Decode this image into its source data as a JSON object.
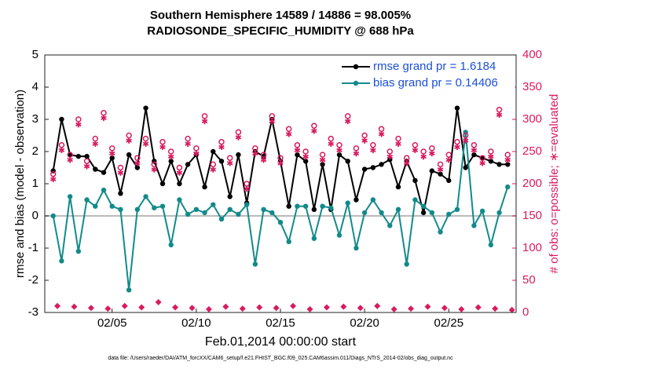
{
  "chart_data": {
    "type": "line",
    "title": "Southern Hemisphere 14589 / 14886 = 98.005%",
    "subtitle": "RADIOSONDE_SPECIFIC_HUMIDITY @ 688 hPa",
    "xlabel": "Feb.01,2014 00:00:00 start",
    "ylabel": "rmse and bias (model - observation)",
    "y2label": "# of obs: o=possible; ∗=evaluated",
    "footnote": "data file: /Users/raeder/DAI/ATM_forcXX/CAM6_setup/f.e21.FHIST_BGC.f09_025.CAM6assim.011/Diags_NTrS_2014-02/obs_diag_output.nc",
    "legend": "upper right",
    "xlim": [
      0,
      28
    ],
    "xticks": [
      {
        "value": 4,
        "label": "02/05"
      },
      {
        "value": 9,
        "label": "02/10"
      },
      {
        "value": 14,
        "label": "02/15"
      },
      {
        "value": 19,
        "label": "02/20"
      },
      {
        "value": 24,
        "label": "02/25"
      }
    ],
    "ylim": [
      -3,
      5
    ],
    "yticks": [
      -3,
      -2,
      -1,
      0,
      1,
      2,
      3,
      4,
      5
    ],
    "y2lim": [
      0,
      400
    ],
    "y2ticks": [
      0,
      50,
      100,
      150,
      200,
      250,
      300,
      350,
      400
    ],
    "x": [
      0.5,
      1,
      1.5,
      2,
      2.5,
      3,
      3.5,
      4,
      4.5,
      5,
      5.5,
      6,
      6.5,
      7,
      7.5,
      8,
      8.5,
      9,
      9.5,
      10,
      10.5,
      11,
      11.5,
      12,
      12.5,
      13,
      13.5,
      14,
      14.5,
      15,
      15.5,
      16,
      16.5,
      17,
      17.5,
      18,
      18.5,
      19,
      19.5,
      20,
      20.5,
      21,
      21.5,
      22,
      22.5,
      23,
      23.5,
      24,
      24.5,
      25,
      25.5,
      26,
      26.5,
      27,
      27.5
    ],
    "series": [
      {
        "name": "rmse grand pr = 1.6184",
        "color": "#000000",
        "marker": "dot",
        "values": [
          1.4,
          3.0,
          1.9,
          1.85,
          1.85,
          1.45,
          1.35,
          1.8,
          0.7,
          1.9,
          1.5,
          3.35,
          1.7,
          1.0,
          1.7,
          1.0,
          1.6,
          1.9,
          0.9,
          2.0,
          1.7,
          0.6,
          1.9,
          0.4,
          2.0,
          1.85,
          3.0,
          1.7,
          0.3,
          1.9,
          1.7,
          0.2,
          1.6,
          0.2,
          1.9,
          1.7,
          0.5,
          1.45,
          1.5,
          1.6,
          1.75,
          0.9,
          1.7,
          1.1,
          0.1,
          1.4,
          1.3,
          1.1,
          3.35,
          1.5,
          1.9,
          1.8,
          1.7,
          1.6,
          1.6
        ]
      },
      {
        "name": "bias grand pr = 0.14406",
        "color": "#138a8a",
        "marker": "dot",
        "values": [
          0.0,
          -1.4,
          0.6,
          -1.1,
          0.5,
          0.3,
          0.8,
          0.3,
          0.2,
          -2.3,
          0.2,
          0.6,
          0.25,
          0.3,
          -0.9,
          0.5,
          0.05,
          0.2,
          0.1,
          0.35,
          -0.1,
          0.2,
          0.05,
          0.35,
          -1.5,
          0.2,
          0.1,
          -0.2,
          -0.8,
          0.3,
          0.3,
          -0.7,
          0.3,
          0.25,
          -0.6,
          0.4,
          -1.0,
          0.1,
          0.5,
          0.1,
          -0.3,
          0.2,
          -1.5,
          0.5,
          0.3,
          0.1,
          -0.5,
          0.05,
          0.2,
          2.6,
          -0.3,
          0.15,
          -0.9,
          0.1,
          0.9
        ]
      },
      {
        "color": "#d81b60",
        "marker": "circle",
        "axis": "y2",
        "values": [
          215,
          260,
          245,
          300,
          235,
          270,
          310,
          255,
          225,
          275,
          240,
          270,
          230,
          265,
          250,
          225,
          270,
          255,
          305,
          230,
          265,
          240,
          280,
          200,
          255,
          245,
          305,
          240,
          285,
          260,
          250,
          290,
          245,
          270,
          260,
          305,
          255,
          275,
          260,
          285,
          250,
          270,
          240,
          260,
          250,
          255,
          230,
          245,
          265,
          275,
          260,
          240,
          250,
          315,
          245
        ]
      },
      {
        "color": "#d81b60",
        "marker": "star",
        "axis": "y2",
        "values": [
          207,
          252,
          237,
          292,
          227,
          262,
          302,
          247,
          217,
          267,
          232,
          262,
          222,
          257,
          242,
          217,
          262,
          247,
          297,
          222,
          257,
          232,
          272,
          192,
          247,
          237,
          297,
          232,
          277,
          252,
          242,
          282,
          237,
          262,
          252,
          297,
          247,
          267,
          252,
          277,
          242,
          262,
          232,
          252,
          242,
          247,
          222,
          237,
          257,
          267,
          252,
          232,
          242,
          307,
          237
        ]
      },
      {
        "color": "#d81b60",
        "marker": "diamond",
        "axis": "y2",
        "x": [
          0.75,
          1.75,
          2.75,
          3.75,
          4.75,
          5.75,
          6.75,
          7.75,
          8.75,
          9.75,
          10.75,
          11.75,
          12.75,
          13.75,
          14.75,
          15.75,
          16.75,
          17.75,
          18.75,
          19.75,
          20.75,
          21.75,
          22.75,
          23.75,
          24.75,
          25.75,
          26.75,
          27.75
        ],
        "values": [
          10,
          9,
          7,
          6,
          10,
          8,
          16,
          8,
          7,
          5,
          9,
          6,
          8,
          7,
          10,
          5,
          8,
          9,
          7,
          10,
          5,
          6,
          9,
          7,
          5,
          8,
          6,
          4
        ]
      }
    ]
  }
}
